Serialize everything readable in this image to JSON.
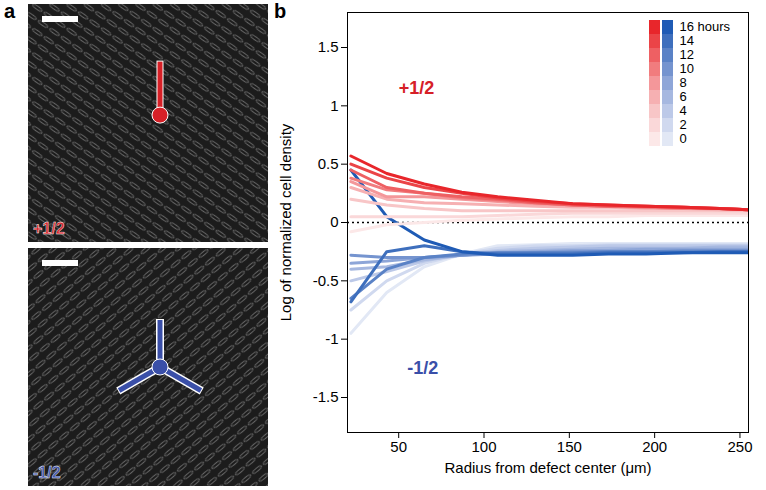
{
  "panel_a": {
    "panel_label": "a",
    "images": [
      {
        "label": "+1/2",
        "color": "#d62027",
        "marker": "comet"
      },
      {
        "label": "-1/2",
        "color": "#3a4fa8",
        "marker": "trefoil"
      }
    ]
  },
  "chart_data": {
    "type": "line",
    "panel_label": "b",
    "x_label": "Radius from defect center (μm)",
    "y_label": "Log of normalized cell density",
    "x": [
      22,
      43,
      65,
      87,
      108,
      130,
      152,
      173,
      195,
      217,
      238,
      255
    ],
    "xlim": [
      20,
      255
    ],
    "xticks": [
      50,
      100,
      150,
      200,
      250
    ],
    "ylim": [
      -1.8,
      1.8
    ],
    "yticks": [
      -1.5,
      -1,
      -0.5,
      0,
      0.5,
      1,
      1.5
    ],
    "reference_y": 0,
    "legend": "top-right",
    "annotations": [
      {
        "text": "+1/2",
        "x": 50,
        "y": 1.15,
        "color": "#d62027"
      },
      {
        "text": "-1/2",
        "x": 55,
        "y": -1.25,
        "color": "#3a4fa8"
      }
    ],
    "series": [
      {
        "name": "16 hours",
        "group": "+1/2",
        "color": "#e8262b",
        "values": [
          0.57,
          0.42,
          0.33,
          0.26,
          0.22,
          0.19,
          0.16,
          0.15,
          0.14,
          0.13,
          0.12,
          0.11
        ]
      },
      {
        "name": "14",
        "group": "+1/2",
        "color": "#eb4447",
        "values": [
          0.5,
          0.38,
          0.3,
          0.25,
          0.21,
          0.18,
          0.16,
          0.15,
          0.14,
          0.13,
          0.12,
          0.11
        ]
      },
      {
        "name": "12",
        "group": "+1/2",
        "color": "#ee6063",
        "values": [
          0.45,
          0.3,
          0.25,
          0.22,
          0.2,
          0.17,
          0.15,
          0.14,
          0.14,
          0.13,
          0.12,
          0.11
        ]
      },
      {
        "name": "10",
        "group": "+1/2",
        "color": "#f17c7e",
        "values": [
          0.38,
          0.28,
          0.25,
          0.21,
          0.19,
          0.17,
          0.15,
          0.14,
          0.13,
          0.12,
          0.12,
          0.11
        ]
      },
      {
        "name": "8",
        "group": "+1/2",
        "color": "#f4979a",
        "values": [
          0.35,
          0.22,
          0.22,
          0.2,
          0.18,
          0.16,
          0.15,
          0.14,
          0.13,
          0.12,
          0.12,
          0.11
        ]
      },
      {
        "name": "6",
        "group": "+1/2",
        "color": "#f6b0b2",
        "values": [
          0.3,
          0.2,
          0.17,
          0.16,
          0.15,
          0.14,
          0.13,
          0.13,
          0.12,
          0.12,
          0.11,
          0.11
        ]
      },
      {
        "name": "4",
        "group": "+1/2",
        "color": "#f8c6c7",
        "values": [
          0.2,
          0.15,
          0.12,
          0.1,
          0.1,
          0.1,
          0.1,
          0.1,
          0.1,
          0.1,
          0.1,
          0.1
        ]
      },
      {
        "name": "2",
        "group": "+1/2",
        "color": "#fad8d9",
        "values": [
          0.05,
          0.05,
          0.05,
          0.05,
          0.06,
          0.07,
          0.08,
          0.08,
          0.08,
          0.08,
          0.08,
          0.08
        ]
      },
      {
        "name": "0",
        "group": "+1/2",
        "color": "#fce8e8",
        "values": [
          -0.08,
          -0.02,
          0,
          0.02,
          0.03,
          0.04,
          0.05,
          0.05,
          0.06,
          0.06,
          0.06,
          0.06
        ]
      },
      {
        "name": "16 hours",
        "group": "-1/2",
        "color": "#1f5bb5",
        "values": [
          0.45,
          0.05,
          -0.15,
          -0.25,
          -0.28,
          -0.28,
          -0.28,
          -0.27,
          -0.27,
          -0.26,
          -0.26,
          -0.26
        ]
      },
      {
        "name": "14",
        "group": "-1/2",
        "color": "#3e6fbd",
        "values": [
          -0.68,
          -0.25,
          -0.2,
          -0.25,
          -0.27,
          -0.27,
          -0.27,
          -0.26,
          -0.26,
          -0.26,
          -0.25,
          -0.25
        ]
      },
      {
        "name": "12",
        "group": "-1/2",
        "color": "#5a82c6",
        "values": [
          -0.65,
          -0.4,
          -0.3,
          -0.27,
          -0.26,
          -0.26,
          -0.26,
          -0.25,
          -0.25,
          -0.25,
          -0.25,
          -0.25
        ]
      },
      {
        "name": "10",
        "group": "-1/2",
        "color": "#7594cf",
        "values": [
          -0.28,
          -0.3,
          -0.3,
          -0.28,
          -0.27,
          -0.26,
          -0.25,
          -0.25,
          -0.25,
          -0.24,
          -0.24,
          -0.24
        ]
      },
      {
        "name": "8",
        "group": "-1/2",
        "color": "#8ea6d8",
        "values": [
          -0.35,
          -0.33,
          -0.3,
          -0.28,
          -0.26,
          -0.25,
          -0.24,
          -0.24,
          -0.23,
          -0.23,
          -0.23,
          -0.23
        ]
      },
      {
        "name": "6",
        "group": "-1/2",
        "color": "#a6b8e0",
        "values": [
          -0.4,
          -0.38,
          -0.32,
          -0.28,
          -0.25,
          -0.24,
          -0.23,
          -0.22,
          -0.22,
          -0.22,
          -0.21,
          -0.21
        ]
      },
      {
        "name": "4",
        "group": "-1/2",
        "color": "#bcc9e8",
        "values": [
          -0.5,
          -0.42,
          -0.33,
          -0.27,
          -0.24,
          -0.22,
          -0.21,
          -0.2,
          -0.2,
          -0.2,
          -0.2,
          -0.2
        ]
      },
      {
        "name": "2",
        "group": "-1/2",
        "color": "#d0d9ef",
        "values": [
          -0.75,
          -0.5,
          -0.35,
          -0.27,
          -0.22,
          -0.2,
          -0.2,
          -0.19,
          -0.19,
          -0.19,
          -0.19,
          -0.19
        ]
      },
      {
        "name": "0",
        "group": "-1/2",
        "color": "#e2e8f5",
        "values": [
          -0.95,
          -0.6,
          -0.38,
          -0.27,
          -0.2,
          -0.19,
          -0.18,
          -0.18,
          -0.18,
          -0.18,
          -0.18,
          -0.18
        ]
      }
    ]
  }
}
